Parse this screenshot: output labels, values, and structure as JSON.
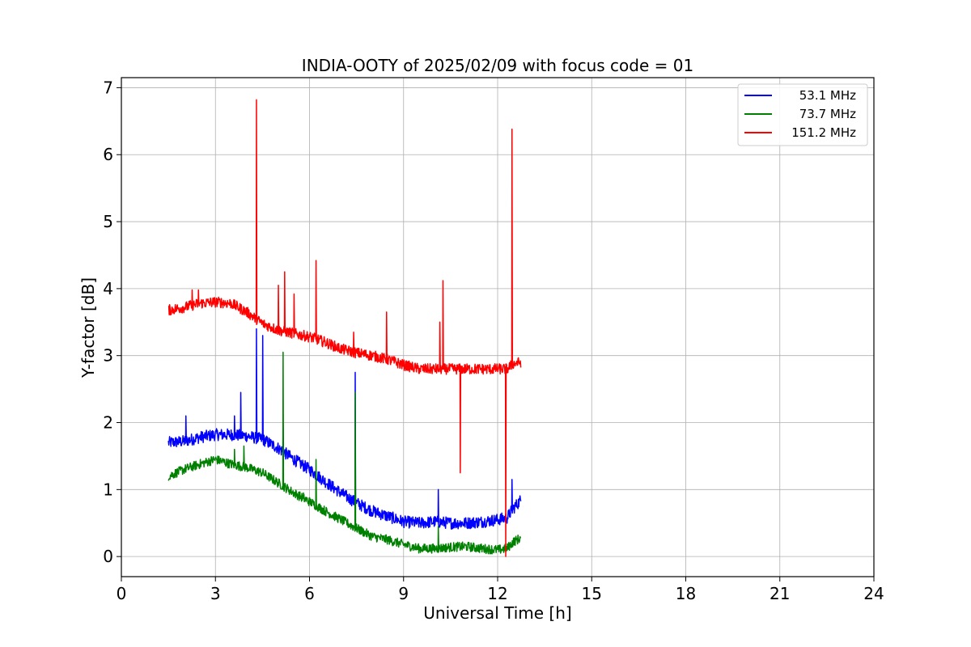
{
  "chart_data": {
    "type": "line",
    "title": "INDIA-OOTY of 2025/02/09 with focus code = 01",
    "xlabel": "Universal Time [h]",
    "ylabel": "Y-factor [dB]",
    "xlim": [
      0,
      24
    ],
    "ylim": [
      -0.3,
      7.15
    ],
    "xticks": [
      0,
      3,
      6,
      9,
      12,
      15,
      18,
      21,
      24
    ],
    "yticks": [
      0,
      1,
      2,
      3,
      4,
      5,
      6,
      7
    ],
    "grid": true,
    "legend_position": "top-right",
    "series": [
      {
        "name": "53.1 MHz",
        "color": "#0000ff",
        "noise": 0.09,
        "x": [
          1.5,
          2.0,
          2.5,
          3.0,
          3.5,
          4.0,
          4.5,
          5.0,
          5.5,
          6.0,
          6.5,
          7.0,
          7.5,
          8.0,
          8.5,
          9.0,
          9.5,
          10.0,
          10.5,
          11.0,
          11.5,
          12.0,
          12.3,
          12.5,
          12.75
        ],
        "y": [
          1.7,
          1.72,
          1.78,
          1.82,
          1.82,
          1.8,
          1.75,
          1.62,
          1.45,
          1.3,
          1.12,
          0.95,
          0.8,
          0.68,
          0.6,
          0.52,
          0.5,
          0.52,
          0.5,
          0.5,
          0.52,
          0.55,
          0.58,
          0.72,
          0.85
        ],
        "spikes": [
          [
            2.05,
            2.1
          ],
          [
            3.6,
            2.1
          ],
          [
            3.8,
            2.45
          ],
          [
            4.3,
            3.4
          ],
          [
            4.5,
            3.3
          ],
          [
            5.15,
            1.95
          ],
          [
            7.45,
            2.75
          ],
          [
            10.1,
            1.0
          ],
          [
            12.45,
            1.15
          ]
        ]
      },
      {
        "name": "73.7 MHz",
        "color": "#008000",
        "noise": 0.07,
        "x": [
          1.5,
          2.0,
          2.5,
          3.0,
          3.5,
          4.0,
          4.5,
          5.0,
          5.5,
          6.0,
          6.5,
          7.0,
          7.5,
          8.0,
          8.5,
          9.0,
          9.5,
          10.0,
          10.5,
          11.0,
          11.5,
          12.0,
          12.3,
          12.5,
          12.75
        ],
        "y": [
          1.2,
          1.3,
          1.38,
          1.45,
          1.38,
          1.33,
          1.25,
          1.1,
          0.95,
          0.82,
          0.68,
          0.55,
          0.42,
          0.3,
          0.25,
          0.18,
          0.12,
          0.12,
          0.14,
          0.15,
          0.12,
          0.1,
          0.12,
          0.22,
          0.28
        ],
        "spikes": [
          [
            3.6,
            1.6
          ],
          [
            3.9,
            1.65
          ],
          [
            5.15,
            3.05
          ],
          [
            5.8,
            0.95
          ],
          [
            6.2,
            1.45
          ],
          [
            7.45,
            2.45
          ],
          [
            10.1,
            0.45
          ]
        ]
      },
      {
        "name": "151.2 MHz",
        "color": "#ff0000",
        "noise": 0.08,
        "x": [
          1.5,
          2.0,
          2.5,
          3.0,
          3.5,
          4.0,
          4.5,
          5.0,
          5.5,
          6.0,
          6.5,
          7.0,
          7.5,
          8.0,
          8.5,
          9.0,
          9.5,
          10.0,
          10.5,
          11.0,
          11.5,
          12.0,
          12.3,
          12.5,
          12.75
        ],
        "y": [
          3.68,
          3.72,
          3.78,
          3.8,
          3.78,
          3.65,
          3.48,
          3.38,
          3.33,
          3.28,
          3.2,
          3.1,
          3.04,
          3.0,
          2.94,
          2.86,
          2.8,
          2.8,
          2.8,
          2.8,
          2.8,
          2.8,
          2.8,
          2.88,
          2.9
        ],
        "spikes": [
          [
            2.25,
            3.98
          ],
          [
            2.45,
            3.98
          ],
          [
            4.3,
            6.82
          ],
          [
            5.0,
            4.05
          ],
          [
            5.2,
            4.25
          ],
          [
            5.5,
            3.92
          ],
          [
            6.2,
            4.42
          ],
          [
            7.4,
            3.35
          ],
          [
            8.45,
            3.65
          ],
          [
            10.15,
            3.5
          ],
          [
            10.25,
            4.12
          ],
          [
            10.8,
            1.25
          ],
          [
            12.25,
            0.0
          ],
          [
            12.45,
            6.38
          ]
        ]
      }
    ]
  }
}
